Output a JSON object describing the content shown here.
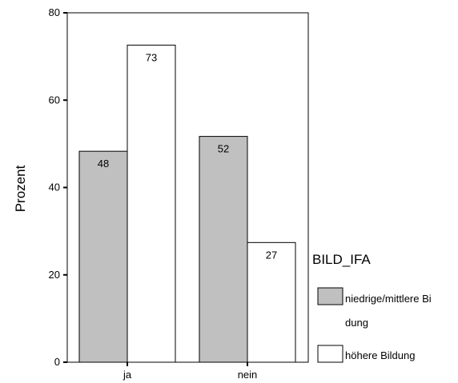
{
  "chart_data": {
    "type": "bar",
    "title": "",
    "xlabel": "",
    "ylabel": "Prozent",
    "ylim": [
      0,
      80
    ],
    "yticks": [
      0,
      20,
      40,
      60,
      80
    ],
    "categories": [
      "ja",
      "nein"
    ],
    "series": [
      {
        "name": "niedrige/mittlere Bildung",
        "legend_lines": [
          "niedrige/mittlere Bi",
          "dung"
        ],
        "values": [
          48.3,
          51.7
        ],
        "labels": [
          "48",
          "52"
        ],
        "color": "#c0c0c0"
      },
      {
        "name": "höhere Bildung",
        "legend_lines": [
          "höhere Bildung"
        ],
        "values": [
          72.6,
          27.4
        ],
        "labels": [
          "73",
          "27"
        ],
        "color": "#ffffff"
      }
    ],
    "legend": {
      "title": "BILD_IFA",
      "position": "right"
    },
    "grid": false
  }
}
